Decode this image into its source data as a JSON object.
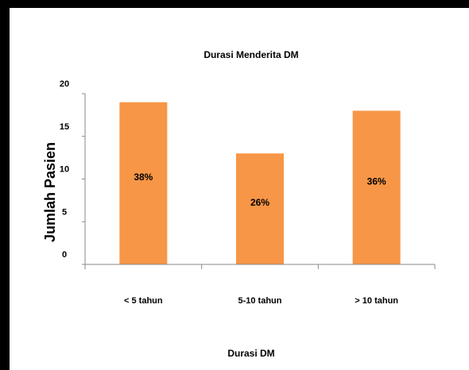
{
  "chart_data": {
    "type": "bar",
    "title": "Durasi Menderita DM",
    "xlabel": "Durasi DM",
    "ylabel": "Jumlah Pasien",
    "categories": [
      "< 5 tahun",
      "5-10 tahun",
      "> 10 tahun"
    ],
    "values": [
      19,
      13,
      18
    ],
    "data_labels": [
      "38%",
      "26%",
      "36%"
    ],
    "yticks": [
      0,
      5,
      10,
      15,
      20
    ],
    "ylim": [
      0,
      20
    ],
    "grid": false,
    "legend": "none",
    "bar_color": "#F79646",
    "frame_color": "#000000"
  }
}
